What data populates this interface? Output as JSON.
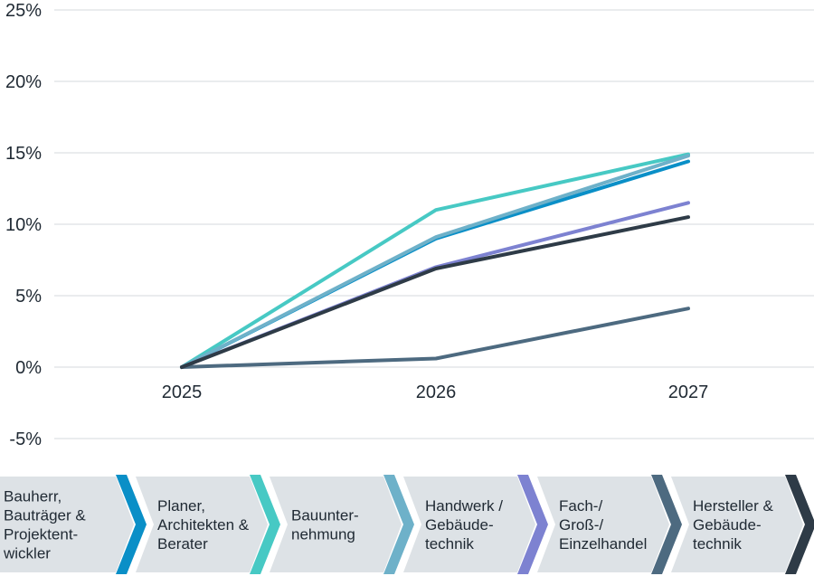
{
  "chart_data": {
    "type": "line",
    "x": [
      "2025",
      "2026",
      "2027"
    ],
    "ylim": [
      -5,
      25
    ],
    "yticks": [
      25,
      20,
      15,
      10,
      5,
      0,
      -5
    ],
    "ytick_labels": [
      "25%",
      "20%",
      "15%",
      "10%",
      "5%",
      "0%",
      "-5%"
    ],
    "grid": true,
    "legend_placement": "bottom",
    "series": [
      {
        "name": "Bauherr, Bauträger & Projektentwickler",
        "label_lines": [
          "Bauherr,",
          "Bauträger &",
          "Projektent-",
          "wickler"
        ],
        "color": "#0a8fc7",
        "values": [
          0,
          9.0,
          14.4
        ]
      },
      {
        "name": "Planer, Architekten & Berater",
        "label_lines": [
          "Planer,",
          "Architekten &",
          "Berater"
        ],
        "color": "#47c9c4",
        "values": [
          0,
          11.0,
          14.9
        ]
      },
      {
        "name": "Bauunternehmung",
        "label_lines": [
          "Bauunter-",
          "nehmung"
        ],
        "color": "#6eb1c9",
        "values": [
          0,
          9.1,
          14.8
        ]
      },
      {
        "name": "Handwerk / Gebäudetechnik",
        "label_lines": [
          "Handwerk /",
          "Gebäude-",
          "technik"
        ],
        "color": "#7d82d1",
        "values": [
          0,
          7.0,
          11.5
        ]
      },
      {
        "name": "Fach-/ Groß-/ Einzelhandel",
        "label_lines": [
          "Fach-/",
          "Groß-/",
          "Einzelhandel"
        ],
        "color": "#4d6a80",
        "values": [
          0,
          0.6,
          4.1
        ]
      },
      {
        "name": "Hersteller & Gebäudetechnik",
        "label_lines": [
          "Hersteller &",
          "Gebäude-",
          "technik"
        ],
        "color": "#2e3b47",
        "values": [
          0,
          6.9,
          10.5
        ]
      }
    ]
  }
}
